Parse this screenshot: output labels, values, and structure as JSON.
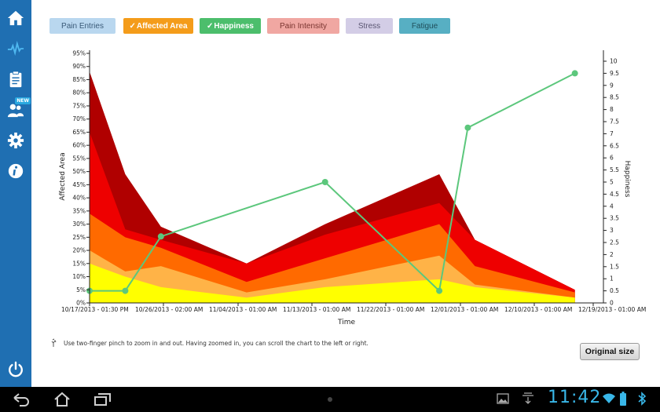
{
  "sidebar": {
    "items": [
      {
        "name": "home-icon"
      },
      {
        "name": "pulse-icon"
      },
      {
        "name": "clipboard-icon"
      },
      {
        "name": "community-icon",
        "badge": "NEW"
      },
      {
        "name": "gear-icon"
      },
      {
        "name": "info-icon"
      },
      {
        "name": "power-icon"
      }
    ]
  },
  "tabs": [
    {
      "label": "Pain Entries",
      "checked": false,
      "bg": "#b9d7ef",
      "fg": "#3a5a78"
    },
    {
      "label": "Affected Area",
      "checked": true,
      "bg": "#f49c1a",
      "fg": "#ffffff"
    },
    {
      "label": "Happiness",
      "checked": true,
      "bg": "#4cbe6c",
      "fg": "#ffffff"
    },
    {
      "label": "Pain Intensity",
      "checked": false,
      "bg": "#f0a7a2",
      "fg": "#7a3530"
    },
    {
      "label": "Stress",
      "checked": false,
      "bg": "#d3cde6",
      "fg": "#5a5672"
    },
    {
      "label": "Fatigue",
      "checked": false,
      "bg": "#57afc3",
      "fg": "#1f4e5a"
    }
  ],
  "check_mark": "✓",
  "chart_data": {
    "type": "area",
    "xlabel": "Time",
    "ylabel_left": "Affected Area",
    "ylabel_right": "Happiness",
    "y_left_ticks": [
      "0%",
      "5%",
      "10%",
      "15%",
      "20%",
      "25%",
      "30%",
      "35%",
      "40%",
      "45%",
      "50%",
      "55%",
      "60%",
      "65%",
      "70%",
      "75%",
      "80%",
      "85%",
      "90%",
      "95%"
    ],
    "y_right_ticks": [
      "0",
      "0.5",
      "1",
      "1.5",
      "2",
      "2.5",
      "3",
      "3.5",
      "4",
      "4.5",
      "5",
      "5.5",
      "6",
      "6.5",
      "7",
      "7.5",
      "8",
      "8.5",
      "9",
      "9.5",
      "10"
    ],
    "ylim_left": [
      0,
      95
    ],
    "ylim_right": [
      0,
      10
    ],
    "x_tick_labels": [
      "10/17/2013 - 01:30 PM",
      "10/26/2013 - 02:00 AM",
      "11/04/2013 - 01:00 AM",
      "11/13/2013 - 01:00 AM",
      "11/22/2013 - 01:00 AM",
      "12/01/2013 - 01:00 AM",
      "12/10/2013 - 01:00 AM",
      "12/19/2013 - 01:00 AM"
    ],
    "x_dates": [
      "10/17/2013",
      "10/22/2013",
      "10/27/2013",
      "11/08/2013",
      "11/19/2013",
      "12/05/2013",
      "12/10/2013",
      "12/24/2013"
    ],
    "stacked_series": [
      {
        "color": "#ffff00",
        "values": [
          15,
          10,
          6,
          2,
          6,
          9,
          6,
          2
        ]
      },
      {
        "color": "#ffb347",
        "values": [
          20,
          12,
          14,
          4,
          9,
          18,
          7,
          2
        ]
      },
      {
        "color": "#ff6a00",
        "values": [
          34,
          25,
          21,
          8,
          17,
          30,
          14,
          4
        ]
      },
      {
        "color": "#ee0000",
        "values": [
          65,
          28,
          24,
          15,
          26,
          38,
          24,
          5
        ]
      },
      {
        "color": "#b00000",
        "values": [
          88,
          49,
          29,
          15,
          30,
          49,
          24,
          5
        ]
      }
    ],
    "line_series": {
      "color": "#5cc77c",
      "axis": "right",
      "x_dates": [
        "10/17/2013",
        "10/22/2013",
        "10/27/2013",
        "11/19/2013",
        "12/05/2013",
        "12/09/2013",
        "12/24/2013"
      ],
      "values": [
        0.5,
        0.5,
        2.75,
        5,
        0.5,
        7.25,
        9.5
      ]
    }
  },
  "hint_text": "Use two-finger pinch to zoom in and out. Having zoomed in, you can scroll the chart to the left or right.",
  "original_size_label": "Original size",
  "status": {
    "clock": "11:42"
  }
}
